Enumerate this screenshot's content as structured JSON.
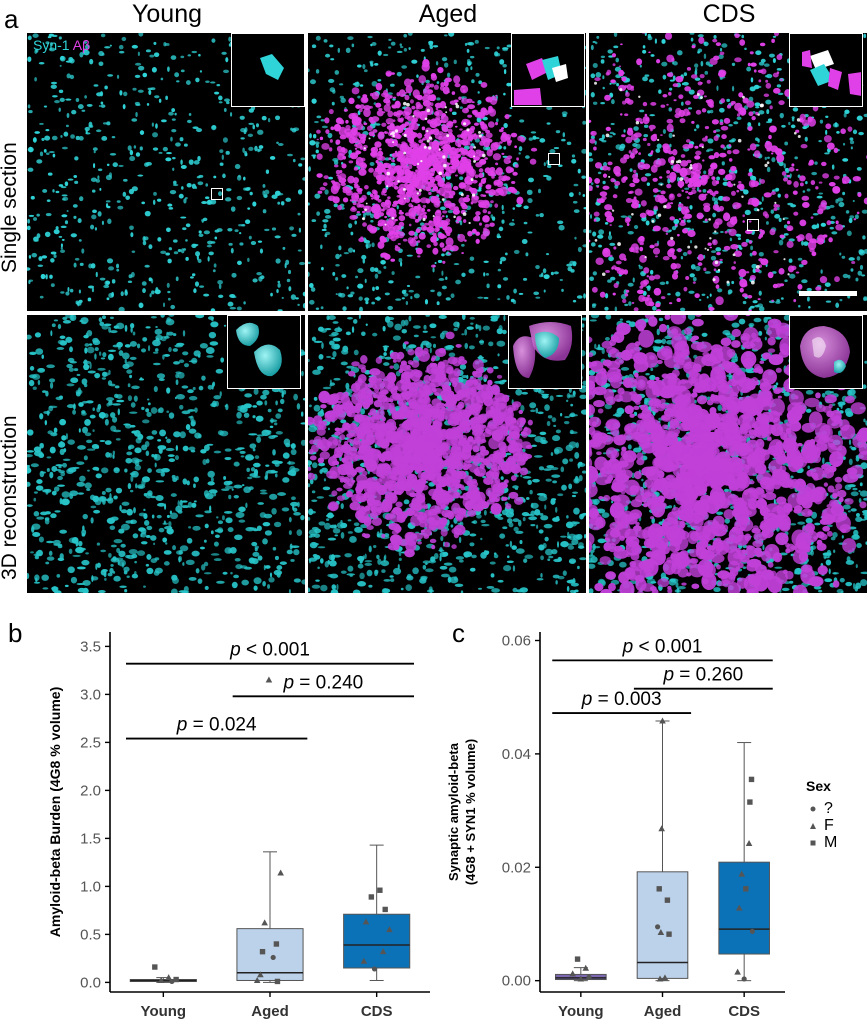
{
  "panel_a": {
    "letter": "a",
    "columns": [
      "Young",
      "Aged",
      "CDS"
    ],
    "rows": [
      "Single section",
      "3D reconstruction"
    ],
    "stain_labels": [
      {
        "text": "Syn-1",
        "color": "#2fd4d8"
      },
      {
        "text": "Aβ",
        "color": "#e040e8"
      }
    ],
    "colors": {
      "synapsin": "#2fd4d8",
      "amyloid": "#e040e8",
      "amyloid_3d": "#c040d8",
      "synapsin_3d": "#27c4c8",
      "background": "#000000"
    }
  },
  "chart_data": [
    {
      "type": "box",
      "panel_letter": "b",
      "title": "",
      "xlabel": "",
      "ylabel": "Amyloid-beta Burden (4G8 % volume)",
      "ylim": [
        -0.1,
        3.65
      ],
      "yticks": [
        "0.0",
        "0.5",
        "1.0",
        "1.5",
        "2.0",
        "2.5",
        "3.0",
        "3.5"
      ],
      "categories": [
        "Young",
        "Aged",
        "CDS"
      ],
      "colors": [
        "#7b68b0",
        "#bcd2ea",
        "#0c72b8"
      ],
      "boxes": [
        {
          "whisker_low": 0.0,
          "q1": 0.01,
          "median": 0.02,
          "q3": 0.03,
          "whisker_high": 0.05
        },
        {
          "whisker_low": 0.0,
          "q1": 0.02,
          "median": 0.1,
          "q3": 0.56,
          "whisker_high": 1.36
        },
        {
          "whisker_low": 0.02,
          "q1": 0.15,
          "median": 0.39,
          "q3": 0.71,
          "whisker_high": 1.43
        }
      ],
      "points": [
        {
          "cat": 0,
          "dx": -0.08,
          "y": 0.16,
          "sex": "M"
        },
        {
          "cat": 0,
          "dx": 0.05,
          "y": 0.05,
          "sex": "F"
        },
        {
          "cat": 0,
          "dx": 0.12,
          "y": 0.03,
          "sex": "M"
        },
        {
          "cat": 0,
          "dx": -0.02,
          "y": 0.02,
          "sex": "F"
        },
        {
          "cat": 0,
          "dx": 0.08,
          "y": 0.01,
          "sex": "?"
        },
        {
          "cat": 1,
          "dx": -0.01,
          "y": 3.15,
          "sex": "F"
        },
        {
          "cat": 1,
          "dx": 0.1,
          "y": 1.14,
          "sex": "F"
        },
        {
          "cat": 1,
          "dx": -0.05,
          "y": 0.62,
          "sex": "F"
        },
        {
          "cat": 1,
          "dx": 0.06,
          "y": 0.4,
          "sex": "M"
        },
        {
          "cat": 1,
          "dx": -0.07,
          "y": 0.32,
          "sex": "M"
        },
        {
          "cat": 1,
          "dx": 0.03,
          "y": 0.26,
          "sex": "?"
        },
        {
          "cat": 1,
          "dx": -0.09,
          "y": 0.08,
          "sex": "F"
        },
        {
          "cat": 1,
          "dx": 0.07,
          "y": 0.01,
          "sex": "M"
        },
        {
          "cat": 1,
          "dx": -0.12,
          "y": 0.02,
          "sex": "F"
        },
        {
          "cat": 2,
          "dx": 0.03,
          "y": 0.96,
          "sex": "M"
        },
        {
          "cat": 2,
          "dx": -0.05,
          "y": 0.89,
          "sex": "M"
        },
        {
          "cat": 2,
          "dx": 0.08,
          "y": 0.76,
          "sex": "M"
        },
        {
          "cat": 2,
          "dx": -0.1,
          "y": 0.63,
          "sex": "F"
        },
        {
          "cat": 2,
          "dx": 0.12,
          "y": 0.55,
          "sex": "F"
        },
        {
          "cat": 2,
          "dx": 0.06,
          "y": 0.32,
          "sex": "F"
        },
        {
          "cat": 2,
          "dx": -0.12,
          "y": 0.22,
          "sex": "F"
        },
        {
          "cat": 2,
          "dx": -0.02,
          "y": 0.14,
          "sex": "?"
        }
      ],
      "comparisons": [
        {
          "from": 0,
          "to": 2,
          "y": 3.32,
          "label": "< 0.001"
        },
        {
          "from": 1,
          "to": 2,
          "y": 2.98,
          "label": "= 0.240"
        },
        {
          "from": 0,
          "to": 1,
          "y": 2.54,
          "label": "= 0.024"
        }
      ]
    },
    {
      "type": "box",
      "panel_letter": "c",
      "title": "",
      "xlabel": "",
      "ylabel_lines": [
        "Synaptic amyloid-beta",
        "(4G8 + SYN1 % volume)"
      ],
      "ylim": [
        -0.002,
        0.0615
      ],
      "yticks": [
        "0.00",
        "0.02",
        "0.04",
        "0.06"
      ],
      "categories": [
        "Young",
        "Aged",
        "CDS"
      ],
      "colors": [
        "#7b68b0",
        "#bcd2ea",
        "#0c72b8"
      ],
      "boxes": [
        {
          "whisker_low": 0.0,
          "q1": 0.0002,
          "median": 0.0005,
          "q3": 0.0011,
          "whisker_high": 0.0023
        },
        {
          "whisker_low": 0.0,
          "q1": 0.0004,
          "median": 0.0032,
          "q3": 0.0192,
          "whisker_high": 0.0458
        },
        {
          "whisker_low": 0.0,
          "q1": 0.0047,
          "median": 0.0091,
          "q3": 0.0209,
          "whisker_high": 0.042
        }
      ],
      "points": [
        {
          "cat": 0,
          "dx": -0.04,
          "y": 0.0038,
          "sex": "M"
        },
        {
          "cat": 0,
          "dx": 0.06,
          "y": 0.0022,
          "sex": "F"
        },
        {
          "cat": 0,
          "dx": -0.1,
          "y": 0.0012,
          "sex": "F"
        },
        {
          "cat": 0,
          "dx": 0.1,
          "y": 0.0006,
          "sex": "?"
        },
        {
          "cat": 0,
          "dx": 0.0,
          "y": 0.0003,
          "sex": "F"
        },
        {
          "cat": 1,
          "dx": 0.0,
          "y": 0.0458,
          "sex": "F"
        },
        {
          "cat": 1,
          "dx": -0.01,
          "y": 0.0268,
          "sex": "F"
        },
        {
          "cat": 1,
          "dx": -0.04,
          "y": 0.0162,
          "sex": "M"
        },
        {
          "cat": 1,
          "dx": 0.06,
          "y": 0.0142,
          "sex": "M"
        },
        {
          "cat": 1,
          "dx": -0.06,
          "y": 0.0095,
          "sex": "?"
        },
        {
          "cat": 1,
          "dx": -0.02,
          "y": 0.0085,
          "sex": "F"
        },
        {
          "cat": 1,
          "dx": 0.08,
          "y": 0.0082,
          "sex": "M"
        },
        {
          "cat": 1,
          "dx": 0.03,
          "y": 0.0005,
          "sex": "F"
        },
        {
          "cat": 1,
          "dx": -0.03,
          "y": 0.0003,
          "sex": "F"
        },
        {
          "cat": 2,
          "dx": 0.09,
          "y": 0.0355,
          "sex": "M"
        },
        {
          "cat": 2,
          "dx": 0.07,
          "y": 0.0315,
          "sex": "M"
        },
        {
          "cat": 2,
          "dx": 0.06,
          "y": 0.0242,
          "sex": "F"
        },
        {
          "cat": 2,
          "dx": -0.03,
          "y": 0.0188,
          "sex": "F"
        },
        {
          "cat": 2,
          "dx": 0.02,
          "y": 0.0162,
          "sex": "M"
        },
        {
          "cat": 2,
          "dx": -0.06,
          "y": 0.0128,
          "sex": "F"
        },
        {
          "cat": 2,
          "dx": 0.1,
          "y": 0.0087,
          "sex": "?"
        },
        {
          "cat": 2,
          "dx": -0.08,
          "y": 0.0015,
          "sex": "F"
        },
        {
          "cat": 2,
          "dx": 0.0,
          "y": 0.0003,
          "sex": "?"
        }
      ],
      "comparisons": [
        {
          "from": 0,
          "to": 2,
          "y": 0.0565,
          "label": "< 0.001"
        },
        {
          "from": 1,
          "to": 2,
          "y": 0.0515,
          "label": "= 0.260"
        },
        {
          "from": 0,
          "to": 1,
          "y": 0.0472,
          "label": "= 0.003"
        }
      ]
    }
  ],
  "legend": {
    "title": "Sex",
    "items": [
      {
        "label": "?",
        "shape": "circle"
      },
      {
        "label": "F",
        "shape": "triangle"
      },
      {
        "label": "M",
        "shape": "square"
      }
    ]
  }
}
